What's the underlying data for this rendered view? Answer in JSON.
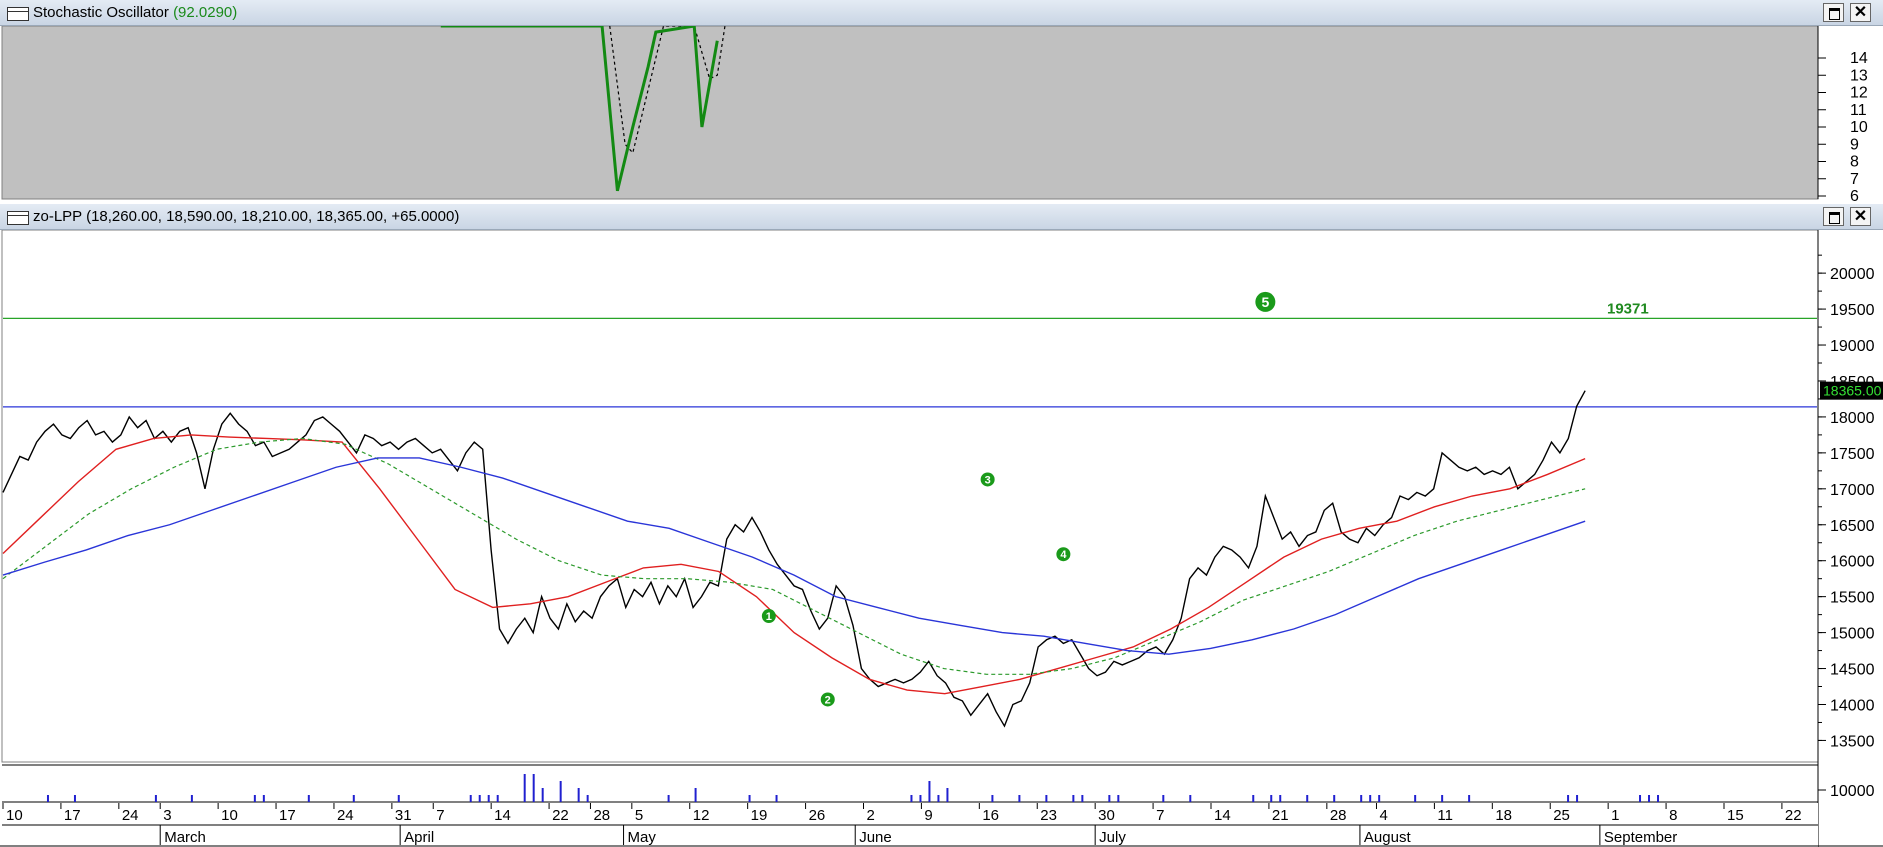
{
  "osc_pane": {
    "title": "Stochastic Oscillator",
    "value": "(92.0290)",
    "ticks": [
      "14",
      "13",
      "12",
      "11",
      "10",
      "9",
      "8",
      "7",
      "6"
    ]
  },
  "main_pane": {
    "title": "zo-LPP (18,260.00, 18,590.00, 18,210.00, 18,365.00, +65.0000)",
    "price_ticks": [
      "20000",
      "19500",
      "19000",
      "18500",
      "18000",
      "17500",
      "17000",
      "16500",
      "16000",
      "15500",
      "15000",
      "14500",
      "14000",
      "13500"
    ],
    "last_price_label": "18365.00",
    "target_label": "19371",
    "volume_tick": "10000"
  },
  "chart_data": {
    "type": "line",
    "ylim": [
      13200,
      20600
    ],
    "hlines": [
      {
        "value": 19371,
        "color": "#28a428",
        "label": "19371"
      },
      {
        "value": 18140,
        "color": "#2a35d8"
      }
    ],
    "wave_labels": [
      {
        "label": "1",
        "x": 91,
        "y": 15230
      },
      {
        "label": "2",
        "x": 98,
        "y": 14070
      },
      {
        "label": "3",
        "x": 117,
        "y": 17130
      },
      {
        "label": "4",
        "x": 126,
        "y": 16090
      },
      {
        "label": "5",
        "x": 150,
        "y": 19600
      }
    ],
    "series": [
      {
        "name": "price",
        "color": "#000000",
        "style": "solid",
        "width": 1.4,
        "values": [
          16950,
          17200,
          17450,
          17400,
          17650,
          17800,
          17900,
          17750,
          17700,
          17850,
          17950,
          17750,
          17800,
          17650,
          17750,
          18000,
          17850,
          17950,
          17700,
          17800,
          17650,
          17800,
          17850,
          17500,
          17000,
          17550,
          17900,
          18050,
          17900,
          17800,
          17600,
          17650,
          17450,
          17500,
          17550,
          17650,
          17750,
          17950,
          18000,
          17900,
          17800,
          17650,
          17500,
          17750,
          17700,
          17600,
          17650,
          17550,
          17650,
          17700,
          17600,
          17500,
          17550,
          17400,
          17250,
          17500,
          17650,
          17550,
          16150,
          15050,
          14850,
          15050,
          15200,
          15000,
          15500,
          15200,
          15050,
          15400,
          15150,
          15300,
          15200,
          15500,
          15650,
          15750,
          15350,
          15600,
          15500,
          15700,
          15400,
          15650,
          15500,
          15750,
          15350,
          15500,
          15700,
          15650,
          16300,
          16500,
          16400,
          16600,
          16400,
          16150,
          15950,
          15800,
          15650,
          15600,
          15300,
          15050,
          15200,
          15650,
          15500,
          15100,
          14500,
          14350,
          14250,
          14300,
          14350,
          14300,
          14350,
          14450,
          14600,
          14400,
          14300,
          14100,
          14050,
          13850,
          14000,
          14150,
          13900,
          13700,
          14000,
          14050,
          14300,
          14800,
          14900,
          14950,
          14850,
          14900,
          14700,
          14500,
          14400,
          14450,
          14600,
          14550,
          14600,
          14650,
          14750,
          14800,
          14700,
          14900,
          15200,
          15750,
          15900,
          15800,
          16050,
          16200,
          16150,
          16050,
          15900,
          16200,
          16900,
          16600,
          16300,
          16400,
          16200,
          16350,
          16400,
          16700,
          16800,
          16400,
          16300,
          16250,
          16450,
          16350,
          16500,
          16600,
          16900,
          16850,
          16950,
          16900,
          17000,
          17500,
          17400,
          17300,
          17250,
          17300,
          17200,
          17250,
          17200,
          17300,
          17000,
          17100,
          17200,
          17400,
          17650,
          17500,
          17700,
          18150,
          18365
        ]
      },
      {
        "name": "ma-red",
        "color": "#e02020",
        "style": "solid",
        "width": 1.4,
        "values": [
          16100,
          16600,
          17100,
          17550,
          17700,
          17750,
          17720,
          17700,
          17680,
          17650,
          17000,
          16300,
          15600,
          15350,
          15400,
          15500,
          15700,
          15900,
          15950,
          15850,
          15500,
          15000,
          14650,
          14350,
          14200,
          14150,
          14250,
          14350,
          14500,
          14650,
          14800,
          15050,
          15350,
          15700,
          16050,
          16300,
          16450,
          16550,
          16750,
          16900,
          17000,
          17200,
          17420
        ]
      },
      {
        "name": "ma-green",
        "color": "#2c9a2c",
        "style": "dashed",
        "width": 1.2,
        "values": [
          15750,
          16200,
          16650,
          17000,
          17300,
          17550,
          17650,
          17700,
          17620,
          17350,
          17000,
          16650,
          16300,
          16000,
          15800,
          15750,
          15750,
          15700,
          15600,
          15300,
          15000,
          14700,
          14500,
          14420,
          14420,
          14500,
          14650,
          14900,
          15150,
          15450,
          15650,
          15850,
          16100,
          16350,
          16550,
          16700,
          16850,
          17000
        ]
      },
      {
        "name": "ma-blue",
        "color": "#2a35d8",
        "style": "solid",
        "width": 1.4,
        "values": [
          15800,
          15980,
          16150,
          16350,
          16500,
          16700,
          16900,
          17100,
          17300,
          17430,
          17430,
          17300,
          17150,
          16950,
          16750,
          16550,
          16450,
          16250,
          16050,
          15800,
          15500,
          15350,
          15200,
          15100,
          15000,
          14950,
          14850,
          14750,
          14700,
          14780,
          14900,
          15050,
          15250,
          15500,
          15750,
          15950,
          16150,
          16350,
          16550
        ]
      }
    ],
    "stochastic": {
      "k_points": [
        [
          57,
          16.5
        ],
        [
          58,
          16.3
        ],
        [
          78,
          16.5
        ],
        [
          80,
          6.3
        ],
        [
          82,
          10.0
        ],
        [
          84,
          13.5
        ],
        [
          85,
          15.5
        ],
        [
          90,
          16.5
        ],
        [
          91,
          10.0
        ],
        [
          93,
          15.0
        ]
      ],
      "d_points": [
        [
          79,
          16.5
        ],
        [
          81,
          9.0
        ],
        [
          82,
          8.5
        ],
        [
          85,
          14.0
        ],
        [
          86,
          16.0
        ],
        [
          90,
          16.5
        ],
        [
          92,
          12.8
        ],
        [
          93,
          13.0
        ],
        [
          94,
          16.5
        ]
      ]
    },
    "volume": [
      0,
      0,
      0,
      0,
      0,
      1,
      0,
      0,
      1,
      0,
      0,
      0,
      0,
      0,
      0,
      0,
      0,
      1,
      0,
      0,
      0,
      1,
      0,
      0,
      0,
      0,
      0,
      0,
      1,
      1,
      0,
      0,
      0,
      0,
      1,
      0,
      0,
      0,
      0,
      1,
      0,
      0,
      0,
      0,
      1,
      0,
      0,
      0,
      0,
      0,
      0,
      0,
      1,
      1,
      1,
      1,
      0,
      0,
      4,
      4,
      2,
      0,
      3,
      0,
      2,
      1,
      0,
      0,
      0,
      0,
      0,
      0,
      0,
      0,
      1,
      0,
      0,
      2,
      0,
      0,
      0,
      0,
      0,
      1,
      0,
      0,
      1,
      0,
      0,
      0,
      0,
      0,
      0,
      0,
      0,
      0,
      0,
      0,
      0,
      0,
      0,
      1,
      1,
      3,
      1,
      2,
      0,
      0,
      0,
      0,
      1,
      0,
      0,
      1,
      0,
      0,
      1,
      0,
      0,
      1,
      1,
      0,
      0,
      1,
      1,
      0,
      0,
      0,
      0,
      1,
      0,
      0,
      1,
      0,
      0,
      0,
      0,
      0,
      0,
      1,
      0,
      1,
      1,
      0,
      0,
      1,
      0,
      0,
      1,
      0,
      0,
      1,
      1,
      1,
      0,
      0,
      0,
      1,
      0,
      0,
      1,
      0,
      0,
      1,
      0,
      0,
      0,
      0,
      0,
      0,
      0,
      0,
      0,
      0,
      1,
      1,
      0,
      0,
      0,
      0,
      0,
      0,
      1,
      1,
      1,
      0,
      0,
      0
    ],
    "date_ticks": [
      {
        "x": 0,
        "label": "10"
      },
      {
        "x": 7,
        "label": "17"
      },
      {
        "x": 14,
        "label": "24"
      },
      {
        "x": 19,
        "label": "3"
      },
      {
        "x": 26,
        "label": "10"
      },
      {
        "x": 33,
        "label": "17"
      },
      {
        "x": 40,
        "label": "24"
      },
      {
        "x": 47,
        "label": "31"
      },
      {
        "x": 52,
        "label": "7"
      },
      {
        "x": 59,
        "label": "14"
      },
      {
        "x": 66,
        "label": "22"
      },
      {
        "x": 71,
        "label": "28"
      },
      {
        "x": 76,
        "label": "5"
      },
      {
        "x": 83,
        "label": "12"
      },
      {
        "x": 90,
        "label": "19"
      },
      {
        "x": 97,
        "label": "26"
      },
      {
        "x": 104,
        "label": "2"
      },
      {
        "x": 111,
        "label": "9"
      },
      {
        "x": 118,
        "label": "16"
      },
      {
        "x": 125,
        "label": "23"
      },
      {
        "x": 132,
        "label": "30"
      },
      {
        "x": 139,
        "label": "7"
      },
      {
        "x": 146,
        "label": "14"
      },
      {
        "x": 153,
        "label": "21"
      },
      {
        "x": 160,
        "label": "28"
      },
      {
        "x": 166,
        "label": "4"
      },
      {
        "x": 173,
        "label": "11"
      },
      {
        "x": 180,
        "label": "18"
      },
      {
        "x": 187,
        "label": "25"
      },
      {
        "x": 194,
        "label": "1"
      },
      {
        "x": 201,
        "label": "8"
      },
      {
        "x": 208,
        "label": "15"
      },
      {
        "x": 215,
        "label": "22"
      }
    ],
    "month_ticks": [
      {
        "x": 19,
        "label": "March"
      },
      {
        "x": 48,
        "label": "April"
      },
      {
        "x": 75,
        "label": "May"
      },
      {
        "x": 103,
        "label": "June"
      },
      {
        "x": 132,
        "label": "July"
      },
      {
        "x": 164,
        "label": "August"
      },
      {
        "x": 193,
        "label": "September"
      }
    ],
    "x_count": 220
  }
}
